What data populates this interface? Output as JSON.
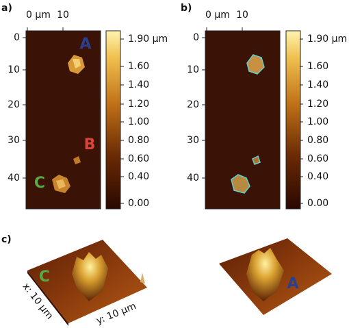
{
  "panels": [
    {
      "label": "a)",
      "x_ticks": [
        "0 µm",
        "10"
      ],
      "y_ticks": [
        "0",
        "10",
        "20",
        "30",
        "40"
      ],
      "colorbar_ticks": [
        "1.90 µm",
        "1.60",
        "1.40",
        "1.20",
        "1.00",
        "0.80",
        "0.60",
        "0.40",
        "0.00"
      ],
      "annotations": [
        "A",
        "B",
        "C"
      ]
    },
    {
      "label": "b)",
      "x_ticks": [
        "0 µm",
        "10"
      ],
      "y_ticks": [
        "0",
        "10",
        "20",
        "30",
        "40"
      ],
      "colorbar_ticks": [
        "1.90 µm",
        "1.60",
        "1.40",
        "1.20",
        "1.00",
        "0.80",
        "0.60",
        "0.40",
        "0.00"
      ]
    }
  ],
  "panel_c": {
    "label": "c)",
    "left_annotation": "C",
    "right_annotation": "A",
    "x_axis_label": "x: 10 µm",
    "y_axis_label": "y: 10 µm"
  }
}
